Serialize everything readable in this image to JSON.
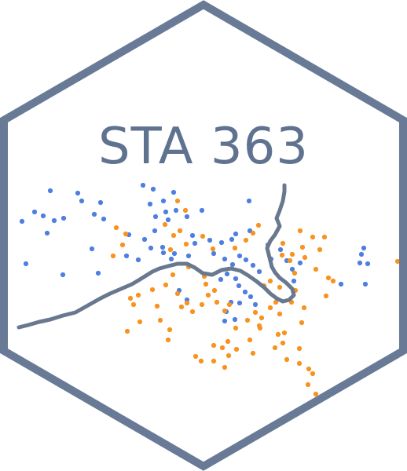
{
  "logo": {
    "title": "STA 363",
    "colors": {
      "background": "#ffffff",
      "border": "#687a96",
      "title": "#5f7290",
      "boundary": "#68788f",
      "class_a": "#4e7fe0",
      "class_b": "#f7931e"
    }
  }
}
